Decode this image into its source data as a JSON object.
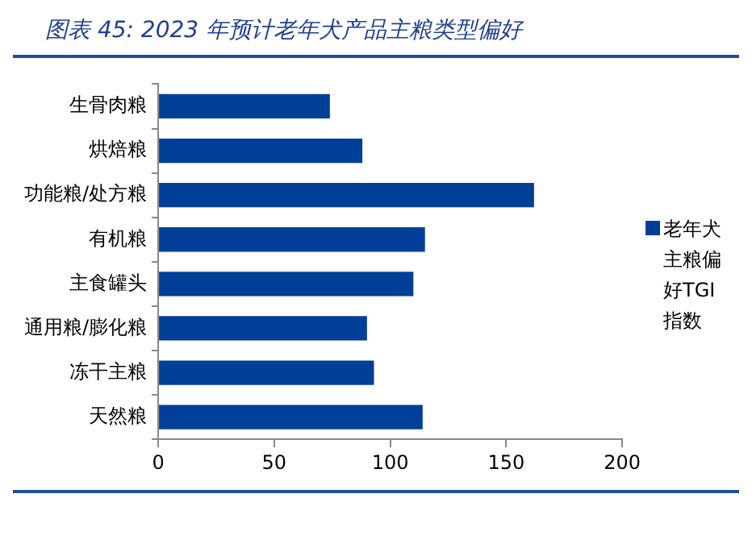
{
  "chart_data": {
    "type": "bar",
    "orientation": "horizontal",
    "title": "图表 45:  2023 年预计老年犬产品主粮类型偏好",
    "categories": [
      "生骨肉粮",
      "烘焙粮",
      "功能粮/处方粮",
      "有机粮",
      "主食罐头",
      "通用粮/膨化粮",
      "冻干主粮",
      "天然粮"
    ],
    "series": [
      {
        "name": "老年犬主粮偏好TGI指数",
        "color": "#003f98",
        "values": [
          74,
          88,
          162,
          115,
          110,
          90,
          93,
          114
        ]
      }
    ],
    "xlim": [
      0,
      200
    ],
    "xticks": [
      0,
      50,
      100,
      150,
      200
    ],
    "grid": false,
    "legend": "right"
  }
}
